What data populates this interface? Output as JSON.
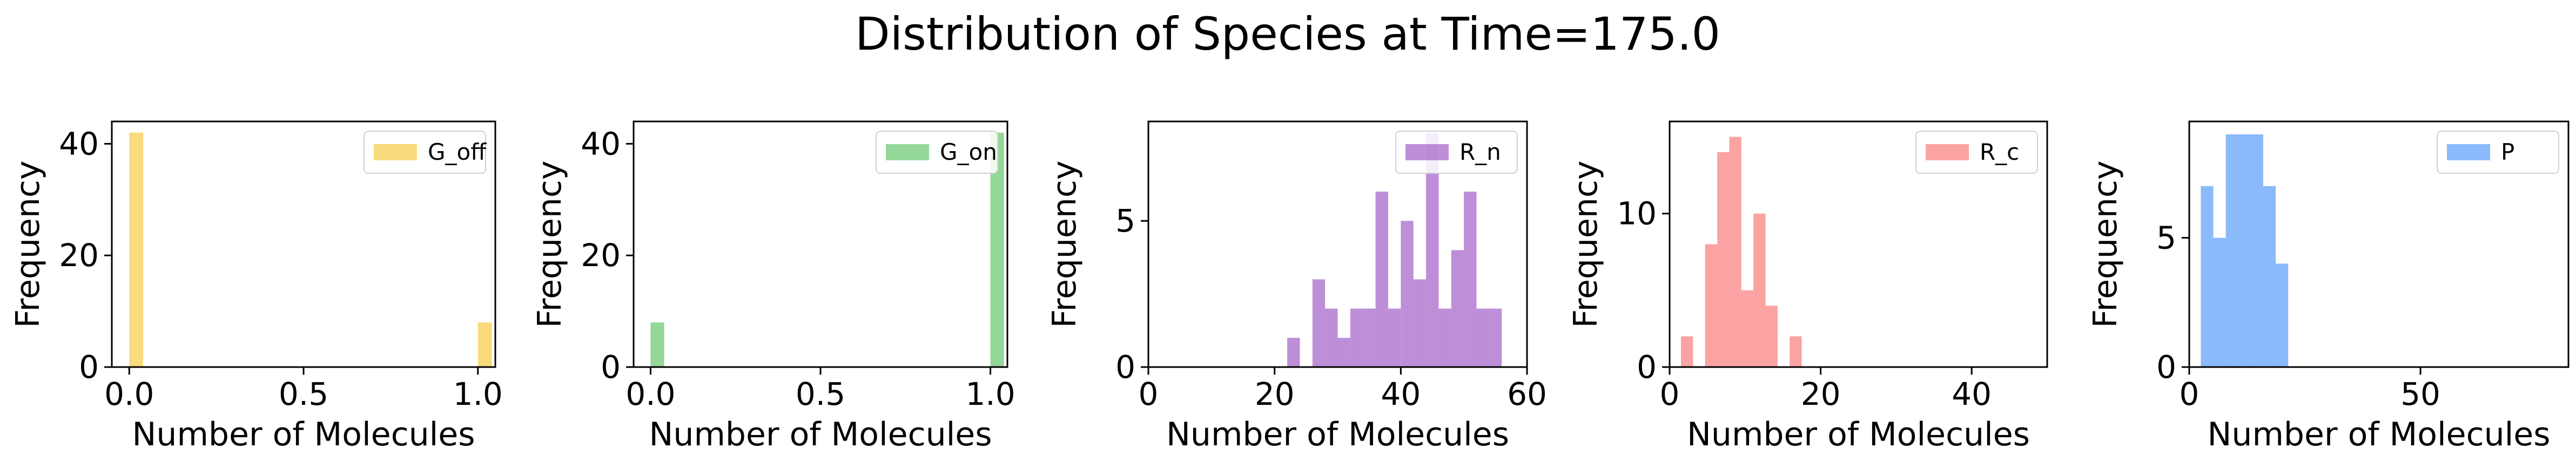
{
  "figure": {
    "title": "Distribution of Species at Time=175.0"
  },
  "chart_data": [
    {
      "type": "bar",
      "legend": "G_off",
      "legend_position": "top-right",
      "color": "#f6ca45",
      "xlabel": "Number of Molecules",
      "ylabel": "Frequency",
      "xlim": [
        -0.05,
        1.05
      ],
      "ylim": [
        0,
        44
      ],
      "xticks": [
        0.0,
        0.5,
        1.0
      ],
      "xtick_labels": [
        "0.0",
        "0.5",
        "1.0"
      ],
      "yticks": [
        0,
        20,
        40
      ],
      "ytick_labels": [
        "0",
        "20",
        "40"
      ],
      "bin_width": 0.04,
      "bins": [
        {
          "x": 0.0,
          "count": 42
        },
        {
          "x": 1.0,
          "count": 8
        }
      ]
    },
    {
      "type": "bar",
      "legend": "G_on",
      "legend_position": "top-right",
      "color": "#66c66e",
      "xlabel": "Number of Molecules",
      "ylabel": "Frequency",
      "xlim": [
        -0.05,
        1.05
      ],
      "ylim": [
        0,
        44
      ],
      "xticks": [
        0.0,
        0.5,
        1.0
      ],
      "xtick_labels": [
        "0.0",
        "0.5",
        "1.0"
      ],
      "yticks": [
        0,
        20,
        40
      ],
      "ytick_labels": [
        "0",
        "20",
        "40"
      ],
      "bin_width": 0.04,
      "bins": [
        {
          "x": 0.0,
          "count": 8
        },
        {
          "x": 1.0,
          "count": 42
        }
      ]
    },
    {
      "type": "bar",
      "legend": "R_n",
      "legend_position": "top-right",
      "color": "#a260c8",
      "xlabel": "Number of Molecules",
      "ylabel": "Frequency",
      "xlim": [
        0,
        60
      ],
      "ylim": [
        0,
        8.4
      ],
      "xticks": [
        0,
        20,
        40,
        60
      ],
      "xtick_labels": [
        "0",
        "20",
        "40",
        "60"
      ],
      "yticks": [
        0,
        5
      ],
      "ytick_labels": [
        "0",
        "5"
      ],
      "bin_width": 2,
      "bins": [
        {
          "x": 22,
          "count": 1
        },
        {
          "x": 24,
          "count": 0
        },
        {
          "x": 26,
          "count": 3
        },
        {
          "x": 28,
          "count": 2
        },
        {
          "x": 30,
          "count": 1
        },
        {
          "x": 32,
          "count": 2
        },
        {
          "x": 34,
          "count": 2
        },
        {
          "x": 36,
          "count": 6
        },
        {
          "x": 38,
          "count": 2
        },
        {
          "x": 40,
          "count": 5
        },
        {
          "x": 42,
          "count": 3
        },
        {
          "x": 44,
          "count": 8
        },
        {
          "x": 46,
          "count": 2
        },
        {
          "x": 48,
          "count": 4
        },
        {
          "x": 50,
          "count": 6
        },
        {
          "x": 52,
          "count": 2
        },
        {
          "x": 54,
          "count": 2
        }
      ]
    },
    {
      "type": "bar",
      "legend": "R_c",
      "legend_position": "top-right",
      "color": "#f97c7c",
      "xlabel": "Number of Molecules",
      "ylabel": "Frequency",
      "xlim": [
        0,
        50
      ],
      "ylim": [
        0,
        16
      ],
      "xticks": [
        0,
        20,
        40
      ],
      "xtick_labels": [
        "0",
        "20",
        "40"
      ],
      "yticks": [
        0,
        10
      ],
      "ytick_labels": [
        "0",
        "10"
      ],
      "bin_width": 1.6,
      "bins": [
        {
          "x": 1.5,
          "count": 2
        },
        {
          "x": 3.1,
          "count": 0
        },
        {
          "x": 4.7,
          "count": 8
        },
        {
          "x": 6.3,
          "count": 14
        },
        {
          "x": 7.9,
          "count": 15
        },
        {
          "x": 9.5,
          "count": 5
        },
        {
          "x": 11.1,
          "count": 10
        },
        {
          "x": 12.7,
          "count": 4
        },
        {
          "x": 14.3,
          "count": 0
        },
        {
          "x": 15.9,
          "count": 2
        }
      ]
    },
    {
      "type": "bar",
      "legend": "P",
      "legend_position": "top-right",
      "color": "#5a9cf8",
      "xlabel": "Number of Molecules",
      "ylabel": "Frequency",
      "xlim": [
        0,
        82
      ],
      "ylim": [
        0,
        9.5
      ],
      "xticks": [
        0,
        50
      ],
      "xtick_labels": [
        "0",
        "50"
      ],
      "yticks": [
        0,
        5
      ],
      "ytick_labels": [
        "0",
        "5"
      ],
      "bin_width": 2.7,
      "bins": [
        {
          "x": 2.5,
          "count": 7
        },
        {
          "x": 5.2,
          "count": 5
        },
        {
          "x": 7.9,
          "count": 9
        },
        {
          "x": 10.6,
          "count": 9
        },
        {
          "x": 13.3,
          "count": 9
        },
        {
          "x": 16.0,
          "count": 7
        },
        {
          "x": 18.7,
          "count": 4
        }
      ]
    }
  ]
}
